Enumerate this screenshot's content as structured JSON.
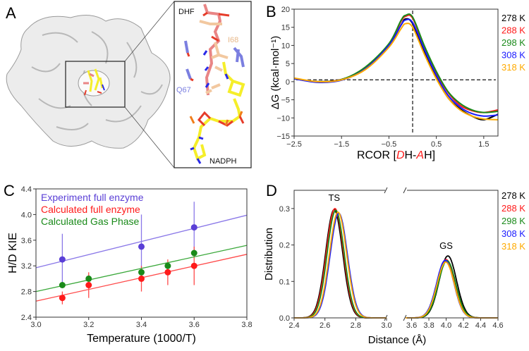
{
  "panel_labels": [
    "A",
    "B",
    "C",
    "D"
  ],
  "panel_a": {
    "labels": {
      "dhf": "DHF",
      "i68": "I68",
      "q67": "Q67",
      "nadph": "NADPH"
    },
    "colors": {
      "dhf": "#e98585",
      "i68": "#f2c8a0",
      "q67": "#7b7fe0",
      "nadph": "#f5ee2a",
      "oxygen": "#e63c2a",
      "nitrogen": "#2a2ae8",
      "phosphorus": "#f07d1a"
    }
  },
  "legend_temps": [
    {
      "label": "278 K",
      "color": "#000000"
    },
    {
      "label": "288 K",
      "color": "#ff1a1a"
    },
    {
      "label": "298 K",
      "color": "#1a8a1a"
    },
    {
      "label": "308 K",
      "color": "#1a1aff"
    },
    {
      "label": "318 K",
      "color": "#ffaa00"
    }
  ],
  "chart_data": [
    {
      "id": "B",
      "type": "line",
      "xlabel_parts": [
        {
          "t": "RCOR [",
          "c": "#000000",
          "i": false
        },
        {
          "t": "D",
          "c": "#ff1a1a",
          "i": true
        },
        {
          "t": "H-",
          "c": "#000000",
          "i": false
        },
        {
          "t": "A",
          "c": "#ff1a1a",
          "i": true
        },
        {
          "t": "H]",
          "c": "#000000",
          "i": false
        }
      ],
      "ylabel": "ΔG (kcal·mol⁻¹)",
      "xlim": [
        -2.5,
        1.8
      ],
      "ylim": [
        -15,
        20
      ],
      "xticks": [
        -2.5,
        -1.5,
        -0.5,
        0.5,
        1.5
      ],
      "xtick_labels": [
        "−2.5",
        "−1.5",
        "−0.5",
        "0.5",
        "1.5"
      ],
      "yticks": [
        -15,
        -10,
        -5,
        0,
        5,
        10,
        15,
        20
      ],
      "ytick_labels": [
        "−15",
        "−10",
        "−5",
        "0",
        "5",
        "10",
        "15",
        "20"
      ],
      "ref_lines": {
        "vertical_x": 0,
        "horizontal_y": 0.5
      },
      "x": [
        -2.5,
        -2.0,
        -1.5,
        -1.0,
        -0.5,
        -0.25,
        -0.15,
        0.0,
        0.25,
        0.5,
        0.75,
        1.0,
        1.25,
        1.5,
        1.8
      ],
      "series": [
        {
          "name": "278 K",
          "values": [
            0.8,
            0.0,
            0.6,
            3.5,
            10.0,
            15.5,
            17.3,
            16.0,
            8.0,
            1.0,
            -4.5,
            -7.5,
            -9.5,
            -10.5,
            -9.0
          ]
        },
        {
          "name": "288 K",
          "values": [
            0.8,
            0.0,
            0.6,
            3.8,
            10.3,
            16.5,
            18.0,
            17.5,
            9.5,
            2.5,
            -3.0,
            -6.5,
            -8.0,
            -8.5,
            -7.8
          ]
        },
        {
          "name": "298 K",
          "values": [
            0.8,
            0.0,
            0.6,
            4.0,
            10.5,
            16.8,
            18.3,
            17.8,
            9.8,
            2.8,
            -2.8,
            -6.0,
            -7.8,
            -8.5,
            -8.2
          ]
        },
        {
          "name": "308 K",
          "values": [
            0.8,
            -0.2,
            0.4,
            3.5,
            10.0,
            15.5,
            17.0,
            16.3,
            8.8,
            1.8,
            -3.8,
            -7.0,
            -8.8,
            -9.5,
            -9.2
          ]
        },
        {
          "name": "318 K",
          "values": [
            1.0,
            0.0,
            0.5,
            3.3,
            9.5,
            14.5,
            16.0,
            15.0,
            7.5,
            0.8,
            -4.5,
            -7.8,
            -9.5,
            -10.3,
            -10.5
          ]
        }
      ]
    },
    {
      "id": "C",
      "type": "scatter",
      "xlabel": "Temperature (1000/T)",
      "ylabel": "H/D KIE",
      "xlim": [
        3.0,
        3.8
      ],
      "ylim": [
        2.4,
        4.4
      ],
      "xticks": [
        3.0,
        3.2,
        3.4,
        3.6,
        3.8
      ],
      "xtick_labels": [
        "3.0",
        "3.2",
        "3.4",
        "3.6",
        "3.8"
      ],
      "yticks": [
        2.4,
        2.8,
        3.2,
        3.6,
        4.0,
        4.4
      ],
      "ytick_labels": [
        "2.4",
        "2.8",
        "3.2",
        "3.6",
        "4.0",
        "4.4"
      ],
      "legend_position": "top-left",
      "series": [
        {
          "name": "Experiment full enzyme",
          "color": "#5a3fd6",
          "line_color": "#8a78e8",
          "points": [
            {
              "x": 3.1,
              "y": 3.3,
              "err": 0.4
            },
            {
              "x": 3.4,
              "y": 3.5,
              "err": 0.5
            },
            {
              "x": 3.6,
              "y": 3.8,
              "err": 0.4
            }
          ],
          "fit": [
            [
              3.0,
              3.17
            ],
            [
              3.8,
              3.99
            ]
          ]
        },
        {
          "name": "Calculated full enzyme",
          "color": "#ff1a1a",
          "line_color": "#ff4a4a",
          "points": [
            {
              "x": 3.1,
              "y": 2.7,
              "err": 0.1
            },
            {
              "x": 3.2,
              "y": 2.9,
              "err": 0.2
            },
            {
              "x": 3.4,
              "y": 3.0,
              "err": 0.2
            },
            {
              "x": 3.5,
              "y": 3.1,
              "err": 0.2
            },
            {
              "x": 3.6,
              "y": 3.2,
              "err": 0.3
            }
          ],
          "fit": [
            [
              3.0,
              2.65
            ],
            [
              3.8,
              3.38
            ]
          ]
        },
        {
          "name": "Calculated Gas Phase",
          "color": "#1a8a1a",
          "line_color": "#3aa83a",
          "points": [
            {
              "x": 3.1,
              "y": 2.9
            },
            {
              "x": 3.2,
              "y": 3.0
            },
            {
              "x": 3.4,
              "y": 3.1
            },
            {
              "x": 3.5,
              "y": 3.2
            },
            {
              "x": 3.6,
              "y": 3.4
            }
          ],
          "fit": [
            [
              3.0,
              2.8
            ],
            [
              3.8,
              3.52
            ]
          ]
        }
      ]
    },
    {
      "id": "D",
      "type": "line",
      "xlabel": "Distance (Å)",
      "ylabel": "Distribution",
      "ylim": [
        0,
        0.35
      ],
      "yticks": [
        0.0,
        0.1,
        0.2,
        0.3
      ],
      "ytick_labels": [
        "0.0",
        "0.1",
        "0.2",
        "0.3"
      ],
      "broken_axis": true,
      "left": {
        "xlim": [
          2.4,
          3.0
        ],
        "xticks": [
          2.4,
          2.6,
          2.8,
          3.0
        ],
        "xtick_labels": [
          "2.4",
          "2.6",
          "2.8",
          "3.0"
        ],
        "annotation": "TS"
      },
      "right": {
        "xlim": [
          3.53,
          4.6
        ],
        "xticks": [
          3.6,
          3.8,
          4.0,
          4.2,
          4.4,
          4.6
        ],
        "xtick_labels": [
          "3.6",
          "3.8",
          "4.0",
          "4.2",
          "4.4",
          "4.6"
        ],
        "annotation": "GS"
      },
      "series": [
        {
          "name": "278 K",
          "ts": {
            "mean": 2.66,
            "peak": 0.297,
            "sd": 0.055
          },
          "gs": {
            "mean": 4.02,
            "peak": 0.17,
            "sd": 0.1
          }
        },
        {
          "name": "288 K",
          "ts": {
            "mean": 2.665,
            "peak": 0.3,
            "sd": 0.055
          },
          "gs": {
            "mean": 4.0,
            "peak": 0.16,
            "sd": 0.1
          }
        },
        {
          "name": "298 K",
          "ts": {
            "mean": 2.67,
            "peak": 0.295,
            "sd": 0.055
          },
          "gs": {
            "mean": 4.01,
            "peak": 0.157,
            "sd": 0.1
          }
        },
        {
          "name": "308 K",
          "ts": {
            "mean": 2.69,
            "peak": 0.287,
            "sd": 0.056
          },
          "gs": {
            "mean": 3.99,
            "peak": 0.158,
            "sd": 0.1
          }
        },
        {
          "name": "318 K",
          "ts": {
            "mean": 2.685,
            "peak": 0.29,
            "sd": 0.056
          },
          "gs": {
            "mean": 3.995,
            "peak": 0.153,
            "sd": 0.1
          }
        }
      ]
    }
  ]
}
